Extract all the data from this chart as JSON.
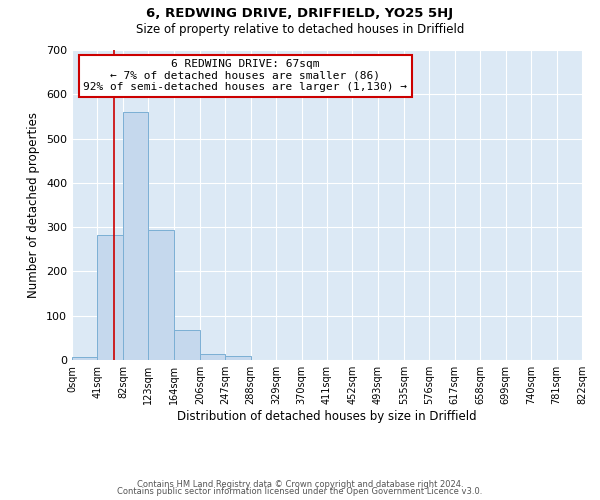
{
  "title": "6, REDWING DRIVE, DRIFFIELD, YO25 5HJ",
  "subtitle": "Size of property relative to detached houses in Driffield",
  "xlabel": "Distribution of detached houses by size in Driffield",
  "ylabel": "Number of detached properties",
  "bin_edges": [
    0,
    41,
    82,
    123,
    164,
    206,
    247,
    288,
    329,
    370,
    411,
    452,
    493,
    535,
    576,
    617,
    658,
    699,
    740,
    781,
    822
  ],
  "bin_labels": [
    "0sqm",
    "41sqm",
    "82sqm",
    "123sqm",
    "164sqm",
    "206sqm",
    "247sqm",
    "288sqm",
    "329sqm",
    "370sqm",
    "411sqm",
    "452sqm",
    "493sqm",
    "535sqm",
    "576sqm",
    "617sqm",
    "658sqm",
    "699sqm",
    "740sqm",
    "781sqm",
    "822sqm"
  ],
  "counts": [
    7,
    282,
    560,
    293,
    68,
    14,
    8,
    0,
    0,
    0,
    0,
    0,
    0,
    0,
    0,
    0,
    0,
    0,
    0,
    0
  ],
  "bar_color": "#c5d8ed",
  "bar_edge_color": "#7bafd4",
  "property_value": 67,
  "vline_color": "#cc0000",
  "annotation_title": "6 REDWING DRIVE: 67sqm",
  "annotation_line1": "← 7% of detached houses are smaller (86)",
  "annotation_line2": "92% of semi-detached houses are larger (1,130) →",
  "annotation_box_color": "#ffffff",
  "annotation_box_edge_color": "#cc0000",
  "ylim": [
    0,
    700
  ],
  "yticks": [
    0,
    100,
    200,
    300,
    400,
    500,
    600,
    700
  ],
  "bg_color": "#dce9f5",
  "footer1": "Contains HM Land Registry data © Crown copyright and database right 2024.",
  "footer2": "Contains public sector information licensed under the Open Government Licence v3.0."
}
